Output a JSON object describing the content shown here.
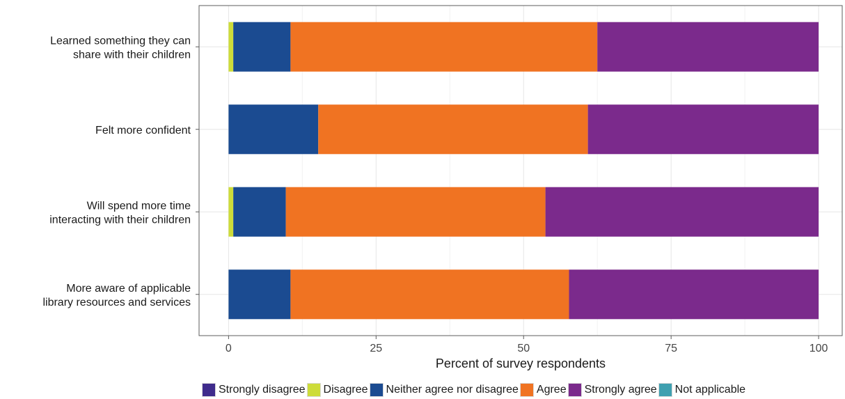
{
  "chart_data": {
    "type": "bar",
    "orientation": "horizontal",
    "stacked": true,
    "categories": [
      [
        "Learned something they can",
        "share with their children"
      ],
      [
        "Felt more confident"
      ],
      [
        "Will spend more time",
        "interacting with their children"
      ],
      [
        "More aware of applicable",
        "library resources and services"
      ]
    ],
    "series": [
      {
        "name": "Strongly disagree",
        "color": "#3f2b8c",
        "values": [
          0,
          0,
          0,
          0
        ]
      },
      {
        "name": "Disagree",
        "color": "#cddc3a",
        "values": [
          0.8,
          0,
          0.8,
          0
        ]
      },
      {
        "name": "Neither agree nor disagree",
        "color": "#1b4b91",
        "values": [
          9.7,
          15.2,
          8.9,
          10.5
        ]
      },
      {
        "name": "Agree",
        "color": "#f07322",
        "values": [
          52.0,
          45.7,
          44.0,
          47.2
        ]
      },
      {
        "name": "Strongly agree",
        "color": "#7b2a8c",
        "values": [
          37.5,
          39.1,
          46.3,
          42.3
        ]
      },
      {
        "name": "Not applicable",
        "color": "#3fa0b0",
        "values": [
          0,
          0,
          0,
          0
        ]
      }
    ],
    "xlabel": "Percent of survey respondents",
    "ylabel": "",
    "xlim": [
      -5,
      104
    ],
    "xticks": [
      0,
      25,
      50,
      75,
      100
    ],
    "grid": true,
    "legend_position": "bottom"
  }
}
